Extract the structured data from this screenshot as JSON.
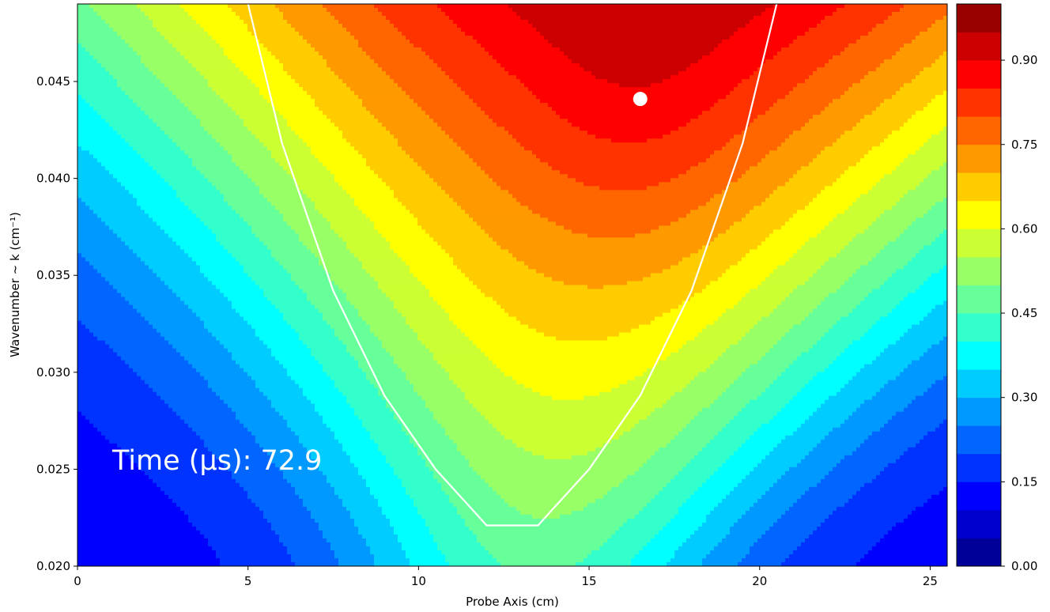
{
  "chart_data": {
    "type": "heatmap",
    "subtype": "filled-contour",
    "colormap": "jet",
    "title": "",
    "xlabel": "Probe Axis (cm)",
    "ylabel": "Wavenumber ~ k (cm⁻¹)",
    "xlim": [
      0,
      25.5
    ],
    "ylim": [
      0.02,
      0.049
    ],
    "x_ticks": [
      0,
      5,
      10,
      15,
      20,
      25
    ],
    "x_tick_labels": [
      "0",
      "5",
      "10",
      "15",
      "20",
      "25"
    ],
    "y_ticks": [
      0.02,
      0.025,
      0.03,
      0.035,
      0.04,
      0.045
    ],
    "y_tick_labels": [
      "0.020",
      "0.025",
      "0.030",
      "0.035",
      "0.040",
      "0.045"
    ],
    "grid": false,
    "legend": "none",
    "colorbar": {
      "range": [
        0.0,
        1.0
      ],
      "n_levels": 20,
      "ticks": [
        0.0,
        0.15,
        0.3,
        0.45,
        0.6,
        0.75,
        0.9
      ],
      "tick_labels": [
        "0.00",
        "0.15",
        "0.30",
        "0.45",
        "0.60",
        "0.75",
        "0.90"
      ]
    },
    "field_model": {
      "peak": {
        "x": 16.5,
        "y": 0.0441
      },
      "peak_value": 0.93
    },
    "annotation": {
      "text": "Time (μs): 72.9",
      "position": "lower-left",
      "color": "#ffffff"
    },
    "peak_marker": {
      "x": 16.5,
      "y": 0.0441,
      "color": "#ffffff"
    },
    "ridge_line": {
      "color": "#ffffff",
      "x": [
        5.0,
        6.0,
        7.5,
        9.0,
        10.5,
        12.0,
        13.5,
        15.0,
        16.5,
        18.0,
        19.5,
        20.5
      ],
      "y": [
        0.049,
        0.0418,
        0.0342,
        0.0288,
        0.025,
        0.0221,
        0.0221,
        0.025,
        0.0288,
        0.0342,
        0.0418,
        0.049
      ]
    }
  }
}
